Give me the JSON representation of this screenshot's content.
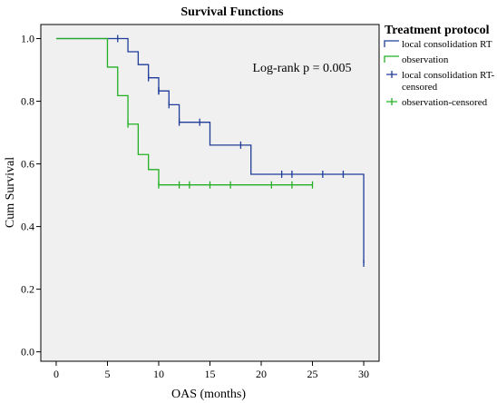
{
  "chart_data": {
    "type": "line",
    "title": "Survival Functions",
    "xlabel": "OAS (months)",
    "ylabel": "Cum Survival",
    "xlim": [
      -1.5,
      31.5
    ],
    "ylim": [
      -0.03,
      1.045
    ],
    "x_ticks": [
      0,
      5,
      10,
      15,
      20,
      25,
      30
    ],
    "y_ticks": [
      0.0,
      0.2,
      0.4,
      0.6,
      0.8,
      1.0
    ],
    "y_tick_labels": [
      "0.0",
      "0.2",
      "0.4",
      "0.6",
      "0.8",
      "1.0"
    ],
    "grid": false,
    "legend_position": "right",
    "legend_title": "Treatment protocol",
    "annotation": "Log-rank p = 0.005",
    "colors": {
      "plot_bg": "#f0f0f0",
      "rt": "#1f3d99",
      "observation": "#22b022"
    },
    "series": [
      {
        "name": "local consolidation RT",
        "color": "#1f3d99",
        "steps": [
          [
            0,
            1.0
          ],
          [
            7,
            0.958
          ],
          [
            8,
            0.917
          ],
          [
            9,
            0.875
          ],
          [
            10,
            0.833
          ],
          [
            11,
            0.789
          ],
          [
            12,
            0.733
          ],
          [
            15,
            0.66
          ],
          [
            19,
            0.567
          ],
          [
            30,
            0.283
          ]
        ],
        "end_x": 30,
        "censored_label": "local consolidation RT-censored",
        "censored": [
          [
            6,
            1.0
          ],
          [
            9,
            0.875
          ],
          [
            10,
            0.833
          ],
          [
            10,
            0.833
          ],
          [
            11,
            0.789
          ],
          [
            12,
            0.733
          ],
          [
            14,
            0.733
          ],
          [
            18,
            0.66
          ],
          [
            22,
            0.567
          ],
          [
            23,
            0.567
          ],
          [
            26,
            0.567
          ],
          [
            28,
            0.567
          ],
          [
            30,
            0.283
          ]
        ]
      },
      {
        "name": "observation",
        "color": "#22b022",
        "steps": [
          [
            0,
            1.0
          ],
          [
            5,
            0.909
          ],
          [
            6,
            0.818
          ],
          [
            7,
            0.727
          ],
          [
            8,
            0.63
          ],
          [
            9,
            0.582
          ],
          [
            10,
            0.533
          ]
        ],
        "end_x": 25,
        "censored_label": "observation-censored",
        "censored": [
          [
            7,
            0.727
          ],
          [
            10,
            0.533
          ],
          [
            12,
            0.533
          ],
          [
            13,
            0.533
          ],
          [
            15,
            0.533
          ],
          [
            17,
            0.533
          ],
          [
            21,
            0.533
          ],
          [
            23,
            0.533
          ],
          [
            25,
            0.533
          ]
        ]
      }
    ]
  }
}
